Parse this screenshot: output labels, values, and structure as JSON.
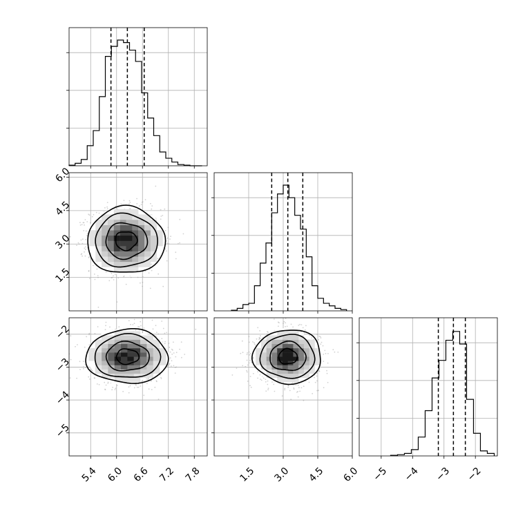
{
  "chart_data": {
    "type": "corner",
    "parameters": [
      {
        "id": "p0",
        "range": [
          4.9,
          8.1
        ],
        "ticks": [
          5.4,
          6.0,
          6.6,
          7.2,
          7.8
        ],
        "tick_labels": [
          "5.4",
          "6.0",
          "6.6",
          "7.2",
          "7.8"
        ],
        "quantiles": [
          5.87,
          6.25,
          6.64
        ],
        "hist_bins": [
          4.9,
          5.04,
          5.18,
          5.32,
          5.46,
          5.6,
          5.74,
          5.88,
          6.02,
          6.16,
          6.3,
          6.44,
          6.58,
          6.72,
          6.86,
          7.0,
          7.14,
          7.28,
          7.42,
          7.56,
          7.7,
          7.84,
          7.98
        ],
        "hist_counts": [
          0.005,
          0.02,
          0.05,
          0.16,
          0.28,
          0.55,
          0.87,
          0.95,
          1.0,
          0.98,
          0.92,
          0.83,
          0.58,
          0.38,
          0.24,
          0.11,
          0.06,
          0.03,
          0.01,
          0.005,
          0.0,
          0.0
        ]
      },
      {
        "id": "p1",
        "range": [
          0.0,
          6.0
        ],
        "ticks": [
          1.5,
          3.0,
          4.5,
          6.0
        ],
        "tick_labels": [
          "1.5",
          "3.0",
          "4.5",
          "6.0"
        ],
        "quantiles": [
          2.5,
          3.2,
          3.85
        ],
        "hist_bins": [
          0.75,
          1.0,
          1.25,
          1.5,
          1.75,
          2.0,
          2.25,
          2.5,
          2.75,
          3.0,
          3.25,
          3.5,
          3.75,
          4.0,
          4.25,
          4.5,
          4.75,
          5.0,
          5.25,
          5.5,
          5.75
        ],
        "hist_counts": [
          0.005,
          0.02,
          0.05,
          0.06,
          0.2,
          0.38,
          0.54,
          0.78,
          0.93,
          1.0,
          0.9,
          0.76,
          0.65,
          0.43,
          0.2,
          0.1,
          0.06,
          0.04,
          0.02,
          0.01
        ]
      },
      {
        "id": "p2",
        "range": [
          -5.7,
          -1.3
        ],
        "ticks": [
          -5,
          -4,
          -3,
          -2
        ],
        "tick_labels": [
          "−5",
          "−4",
          "−3",
          "−2"
        ],
        "quantiles": [
          -3.18,
          -2.7,
          -2.32
        ],
        "hist_bins": [
          -4.7,
          -4.48,
          -4.26,
          -4.04,
          -3.82,
          -3.6,
          -3.38,
          -3.16,
          -2.94,
          -2.72,
          -2.5,
          -2.28,
          -2.06,
          -1.84,
          -1.62,
          -1.4
        ],
        "hist_counts": [
          0.005,
          0.01,
          0.02,
          0.05,
          0.15,
          0.36,
          0.62,
          0.76,
          0.92,
          0.99,
          0.89,
          0.45,
          0.18,
          0.04,
          0.02
        ]
      }
    ],
    "joint": [
      {
        "x": "p0",
        "y": "p1",
        "mean": [
          6.22,
          3.15
        ],
        "sigma": [
          0.36,
          0.62
        ],
        "contour_levels": [
          {
            "rx": 0.25,
            "ry": 0.42,
            "wobble": 0.06
          },
          {
            "rx": 0.48,
            "ry": 0.8,
            "wobble": 0.05
          },
          {
            "rx": 0.72,
            "ry": 1.19,
            "wobble": 0.04
          },
          {
            "rx": 0.9,
            "ry": 1.5,
            "wobble": 0.04
          }
        ],
        "ylim": [
          0.0,
          6.2
        ]
      },
      {
        "x": "p0",
        "y": "p2",
        "mean": [
          6.25,
          -2.68
        ],
        "sigma": [
          0.38,
          0.33
        ],
        "contour_levels": [
          {
            "rx": 0.26,
            "ry": 0.23,
            "wobble": 0.06
          },
          {
            "rx": 0.5,
            "ry": 0.44,
            "wobble": 0.05
          },
          {
            "rx": 0.76,
            "ry": 0.66,
            "wobble": 0.04
          },
          {
            "rx": 0.95,
            "ry": 0.82,
            "wobble": 0.04
          }
        ],
        "ylim": [
          -5.7,
          -1.5
        ]
      },
      {
        "x": "p1",
        "y": "p2",
        "mean": [
          3.2,
          -2.68
        ],
        "sigma": [
          0.58,
          0.33
        ],
        "contour_levels": [
          {
            "rx": 0.4,
            "ry": 0.23,
            "wobble": 0.06
          },
          {
            "rx": 0.78,
            "ry": 0.44,
            "wobble": 0.05
          },
          {
            "rx": 1.18,
            "ry": 0.66,
            "wobble": 0.04
          },
          {
            "rx": 1.48,
            "ry": 0.82,
            "wobble": 0.04
          }
        ],
        "ylim": [
          -5.7,
          -1.5
        ]
      }
    ],
    "diag_y_ticks": [
      0.3,
      0.6,
      0.9
    ],
    "grid": true,
    "legend": "none"
  }
}
